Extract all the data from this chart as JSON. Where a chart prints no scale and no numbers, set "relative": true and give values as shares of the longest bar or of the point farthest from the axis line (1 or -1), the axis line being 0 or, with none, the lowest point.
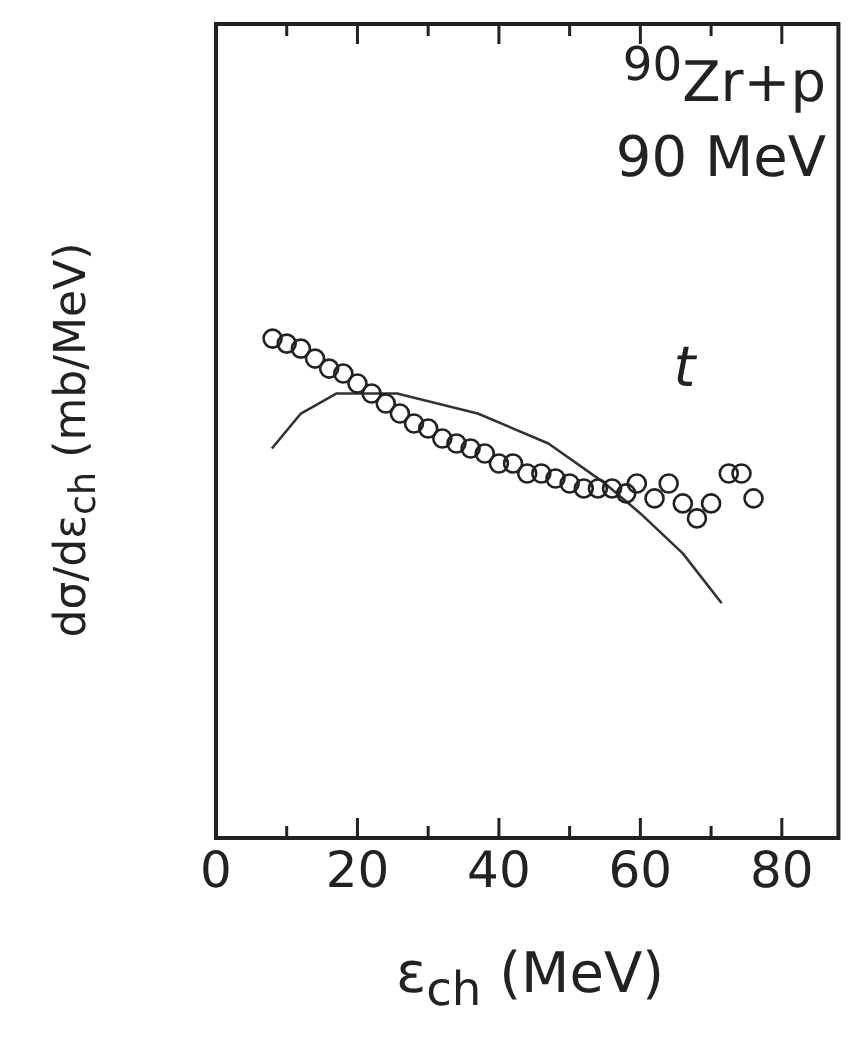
{
  "chart_data": {
    "type": "scatter",
    "relative": true,
    "xlabel": "ε$_{ch}$ (MeV)",
    "ylabel": "dσ/dε$_{ch}$ (mb/MeV)",
    "annotations": [
      "$^{90}$Zr+p",
      "90 MeV"
    ],
    "xlim": [
      0,
      88
    ],
    "xticks": [
      0,
      {
        "value": 10,
        "label": null
      },
      20,
      {
        "value": 30,
        "label": null
      },
      40,
      {
        "value": 50,
        "label": null
      },
      60,
      {
        "value": 70,
        "label": null
      },
      80
    ],
    "grid": false,
    "legend": false,
    "series": [
      {
        "name": "t",
        "type": "scatter",
        "marker": "circle",
        "color": "#222222",
        "x": [
          8,
          10,
          12,
          14,
          16,
          18,
          20,
          22,
          24,
          26,
          28,
          30,
          32,
          34,
          36,
          38,
          40,
          42,
          44,
          46,
          48,
          50,
          52,
          54,
          56,
          58,
          59.5,
          62,
          64,
          66,
          68,
          70,
          72.5,
          74.3,
          76
        ],
        "values": [
          1.0,
          0.99,
          0.98,
          0.96,
          0.94,
          0.93,
          0.91,
          0.89,
          0.87,
          0.85,
          0.83,
          0.82,
          0.8,
          0.79,
          0.78,
          0.77,
          0.75,
          0.75,
          0.73,
          0.73,
          0.72,
          0.71,
          0.7,
          0.7,
          0.7,
          0.69,
          0.71,
          0.68,
          0.71,
          0.67,
          0.64,
          0.67,
          0.73,
          0.73,
          0.68
        ]
      },
      {
        "type": "line",
        "marker": "none",
        "line_style": "solid",
        "color": "#333333",
        "x": [
          7.9,
          12,
          17,
          25.6,
          37,
          47,
          55,
          60,
          66,
          71.5
        ],
        "values": [
          0.78,
          0.85,
          0.89,
          0.89,
          0.85,
          0.79,
          0.71,
          0.65,
          0.57,
          0.47
        ]
      }
    ]
  }
}
